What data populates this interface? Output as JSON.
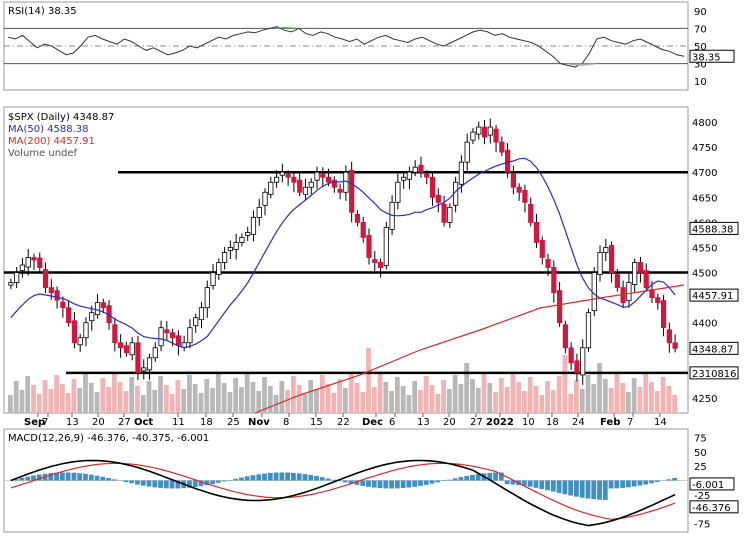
{
  "rsi_panel": {
    "legend": "RSI(14) 38.35",
    "ticks": [
      90,
      70,
      50,
      30,
      10
    ],
    "last_label": "38.35",
    "values": [
      60,
      58,
      62,
      55,
      48,
      52,
      50,
      45,
      40,
      42,
      50,
      60,
      62,
      58,
      55,
      52,
      58,
      55,
      50,
      45,
      48,
      44,
      40,
      42,
      45,
      50,
      48,
      52,
      56,
      60,
      58,
      62,
      64,
      66,
      65,
      68,
      70,
      72,
      68,
      66,
      70,
      64,
      62,
      66,
      64,
      60,
      58,
      55,
      58,
      52,
      56,
      60,
      62,
      58,
      56,
      54,
      58,
      60,
      56,
      52,
      50,
      54,
      58,
      62,
      66,
      68,
      66,
      62,
      64,
      60,
      58,
      56,
      54,
      50,
      44,
      38,
      30,
      28,
      26,
      30,
      42,
      58,
      60,
      56,
      54,
      52,
      56,
      58,
      54,
      50,
      46,
      44,
      40,
      38.35
    ]
  },
  "price_panel": {
    "legend": {
      "title": "$SPX (Daily) 4348.87",
      "ma50": "MA(50) 4588.38",
      "ma200": "MA(200) 4457.91",
      "volume": "Volume undef"
    },
    "ticks": [
      4800,
      4750,
      4700,
      4650,
      4600,
      4550,
      4500,
      4450,
      4400,
      4350,
      4300,
      4250
    ],
    "last_price_label": "4348.87",
    "ma50_label": "4588.38",
    "ma200_label": "4457.91",
    "volume_label": "2310816",
    "horizontal_lines": [
      4700,
      4500,
      4300
    ],
    "closes": [
      4480,
      4500,
      4515,
      4530,
      4525,
      4510,
      4470,
      4460,
      4445,
      4430,
      4400,
      4360,
      4370,
      4400,
      4420,
      4440,
      4430,
      4400,
      4360,
      4350,
      4340,
      4360,
      4300,
      4310,
      4330,
      4350,
      4390,
      4380,
      4370,
      4355,
      4360,
      4390,
      4410,
      4430,
      4470,
      4500,
      4520,
      4540,
      4550,
      4560,
      4570,
      4580,
      4610,
      4630,
      4660,
      4680,
      4690,
      4700,
      4690,
      4680,
      4660,
      4670,
      4680,
      4700,
      4690,
      4680,
      4670,
      4660,
      4700,
      4620,
      4600,
      4570,
      4530,
      4520,
      4510,
      4590,
      4640,
      4680,
      4690,
      4700,
      4710,
      4700,
      4690,
      4650,
      4640,
      4600,
      4630,
      4680,
      4720,
      4760,
      4780,
      4790,
      4770,
      4790,
      4760,
      4740,
      4700,
      4670,
      4660,
      4640,
      4600,
      4560,
      4530,
      4510,
      4460,
      4400,
      4350,
      4320,
      4300,
      4350,
      4420,
      4500,
      4540,
      4550,
      4500,
      4470,
      4440,
      4480,
      4520,
      4500,
      4470,
      4450,
      4440,
      4390,
      4360,
      4348.87
    ]
  },
  "macd_panel": {
    "legend": "MACD(12,26,9) -46.376, -40.375, -6.001",
    "ticks": [
      75,
      50,
      25,
      -25,
      -50,
      -75
    ],
    "label1": "-6.001",
    "label2": "-46.376"
  },
  "x_axis_labels": [
    "Sep",
    "7",
    "13",
    "20",
    "27",
    "Oct",
    "11",
    "18",
    "25",
    "Nov",
    "8",
    "15",
    "22",
    "Dec",
    "6",
    "13",
    "20",
    "27",
    "2022",
    "10",
    "18",
    "24",
    "Feb",
    "7",
    "14"
  ],
  "colors": {
    "up": "#ffffff",
    "down": "#d3163e",
    "ma50": "#2b2bd1",
    "ma200": "#d32c2c",
    "rsi_overbought_fill": "#4e9a4e",
    "rsi_oversold_fill": "#b0b0b0",
    "macd_hist": "#3e8fc4",
    "macd_line": "#000000",
    "signal_line": "#d32c2c",
    "volume_up": "#b8b8b8",
    "volume_down": "#f4b3b3"
  },
  "chart_data": [
    {
      "type": "line",
      "title": "RSI(14) 38.35",
      "ylim": [
        0,
        100
      ],
      "y_ticks": [
        90,
        70,
        50,
        30,
        10
      ],
      "series": [
        {
          "values": "rsi_panel.values"
        }
      ]
    },
    {
      "type": "candlestick",
      "title": "$SPX (Daily) 4348.87",
      "ylim": [
        4220,
        4830
      ],
      "series": [
        {
          "name": "MA(50) 4588.38"
        },
        {
          "name": "MA(200) 4457.91"
        },
        {
          "name": "Volume undef"
        }
      ],
      "x_labels": [
        "Sep",
        "7",
        "13",
        "20",
        "27",
        "Oct",
        "11",
        "18",
        "25",
        "Nov",
        "8",
        "15",
        "22",
        "Dec",
        "6",
        "13",
        "20",
        "27",
        "2022",
        "10",
        "18",
        "24",
        "Feb",
        "7",
        "14"
      ]
    },
    {
      "type": "line",
      "title": "MACD(12,26,9) -46.376, -40.375, -6.001",
      "y_ticks": [
        75,
        50,
        25,
        -25,
        -50,
        -75
      ]
    }
  ]
}
